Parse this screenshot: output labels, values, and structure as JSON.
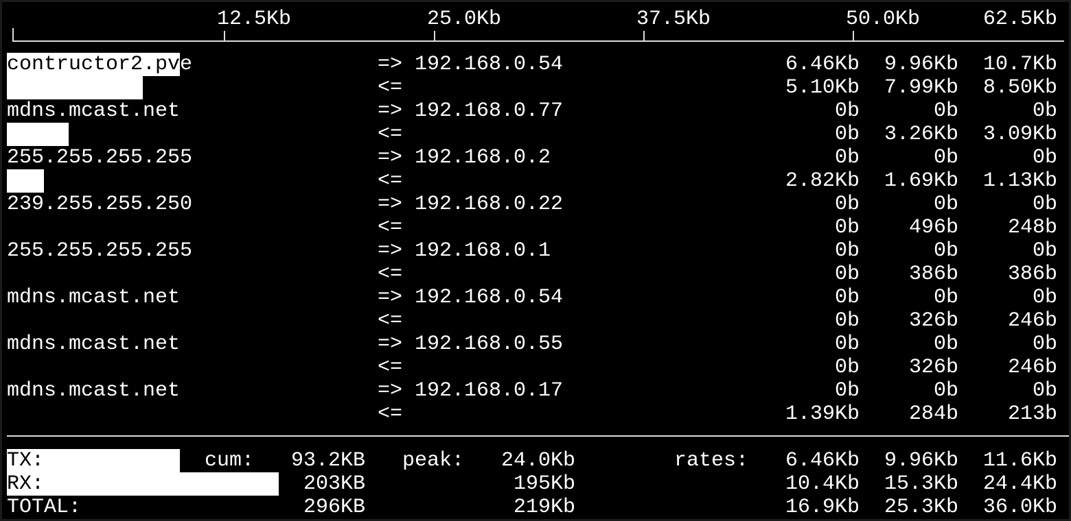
{
  "scale": {
    "labels": [
      "12.5Kb",
      "25.0Kb",
      "37.5Kb",
      "50.0Kb",
      "62.5Kb"
    ]
  },
  "hosts": [
    {
      "host": "contructor2.pve",
      "peer": "192.168.0.54",
      "out": [
        "6.46Kb",
        "9.96Kb",
        "10.7Kb"
      ],
      "in": [
        "5.10Kb",
        "7.99Kb",
        "8.50Kb"
      ]
    },
    {
      "host": "mdns.mcast.net",
      "peer": "192.168.0.77",
      "out": [
        "0b",
        "0b",
        "0b"
      ],
      "in": [
        "0b",
        "3.26Kb",
        "3.09Kb"
      ]
    },
    {
      "host": "255.255.255.255",
      "peer": "192.168.0.2",
      "out": [
        "0b",
        "0b",
        "0b"
      ],
      "in": [
        "2.82Kb",
        "1.69Kb",
        "1.13Kb"
      ]
    },
    {
      "host": "239.255.255.250",
      "peer": "192.168.0.22",
      "out": [
        "0b",
        "0b",
        "0b"
      ],
      "in": [
        "0b",
        "496b",
        "248b"
      ]
    },
    {
      "host": "255.255.255.255",
      "peer": "192.168.0.1",
      "out": [
        "0b",
        "0b",
        "0b"
      ],
      "in": [
        "0b",
        "386b",
        "386b"
      ]
    },
    {
      "host": "mdns.mcast.net",
      "peer": "192.168.0.54",
      "out": [
        "0b",
        "0b",
        "0b"
      ],
      "in": [
        "0b",
        "326b",
        "246b"
      ]
    },
    {
      "host": "mdns.mcast.net",
      "peer": "192.168.0.55",
      "out": [
        "0b",
        "0b",
        "0b"
      ],
      "in": [
        "0b",
        "326b",
        "246b"
      ]
    },
    {
      "host": "mdns.mcast.net",
      "peer": "192.168.0.17",
      "out": [
        "0b",
        "0b",
        "0b"
      ],
      "in": [
        "1.39Kb",
        "284b",
        "213b"
      ]
    }
  ],
  "arrows": {
    "out": "=>",
    "in": "<="
  },
  "summary": {
    "cum_label": "cum:",
    "peak_label": "peak:",
    "rates_label": "rates:",
    "rows": [
      {
        "label": "TX:",
        "cum": "93.2KB",
        "peak": "24.0Kb",
        "rates": [
          "6.46Kb",
          "9.96Kb",
          "11.6Kb"
        ]
      },
      {
        "label": "RX:",
        "cum": "203KB",
        "peak": "195Kb",
        "rates": [
          "10.4Kb",
          "15.3Kb",
          "24.4Kb"
        ]
      },
      {
        "label": "TOTAL:",
        "cum": "296KB",
        "peak": "219Kb",
        "rates": [
          "16.9Kb",
          "25.3Kb",
          "36.0Kb"
        ]
      }
    ]
  }
}
